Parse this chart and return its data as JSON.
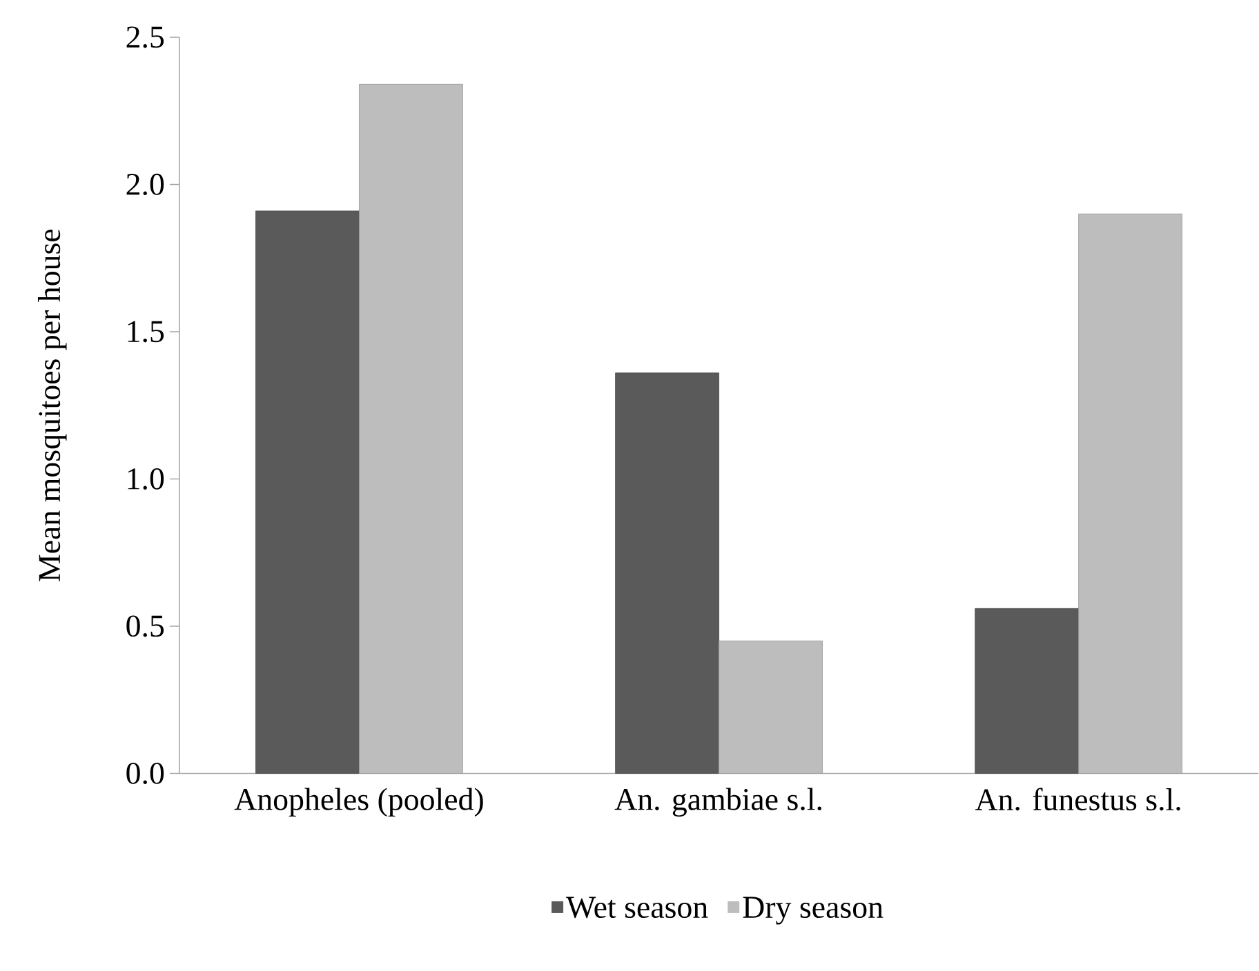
{
  "chart_data": {
    "type": "bar",
    "ylabel": "Mean mosquitoes per house",
    "categories": [
      "Anopheles (pooled)",
      "An. gambiae s.l.",
      "An. funestus s.l."
    ],
    "series": [
      {
        "name": "Wet season",
        "color": "#5a5a5a",
        "values": [
          1.91,
          1.36,
          0.56
        ]
      },
      {
        "name": "Dry season",
        "color": "#bdbdbd",
        "values": [
          2.34,
          0.45,
          1.9
        ]
      }
    ],
    "ylim": [
      0,
      2.5
    ],
    "yticks": [
      {
        "value": 0,
        "label": "0.0"
      },
      {
        "value": 0.5,
        "label": "0.5"
      },
      {
        "value": 1,
        "label": "1.0"
      },
      {
        "value": 1.5,
        "label": "1.5"
      },
      {
        "value": 2,
        "label": "2.0"
      },
      {
        "value": 2.5,
        "label": "2.5"
      }
    ],
    "grid": false,
    "legend": "bottom"
  }
}
